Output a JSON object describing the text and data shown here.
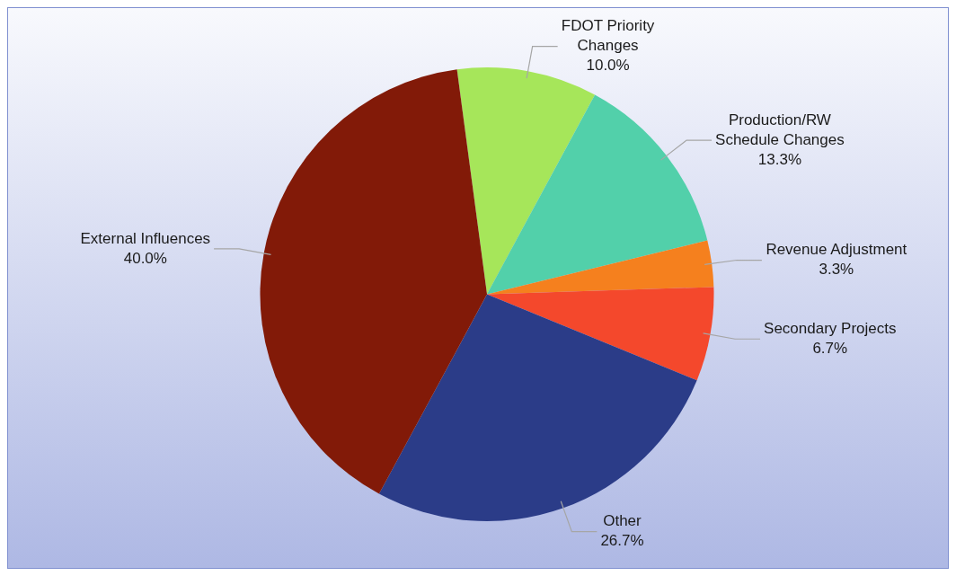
{
  "chart_data": {
    "type": "pie",
    "categories": [
      "FDOT Priority Changes",
      "Production/RW Schedule Changes",
      "Revenue Adjustment",
      "Secondary Projects",
      "Other",
      "External Influences"
    ],
    "values": [
      10.0,
      13.3,
      3.3,
      6.7,
      26.7,
      40.0
    ],
    "colors": [
      "#a6e65a",
      "#52d0aa",
      "#f5801e",
      "#f4482c",
      "#2b3c88",
      "#821a08"
    ],
    "value_labels": [
      "10.0%",
      "13.3%",
      "3.3%",
      "6.7%",
      "26.7%",
      "40.0%"
    ]
  }
}
